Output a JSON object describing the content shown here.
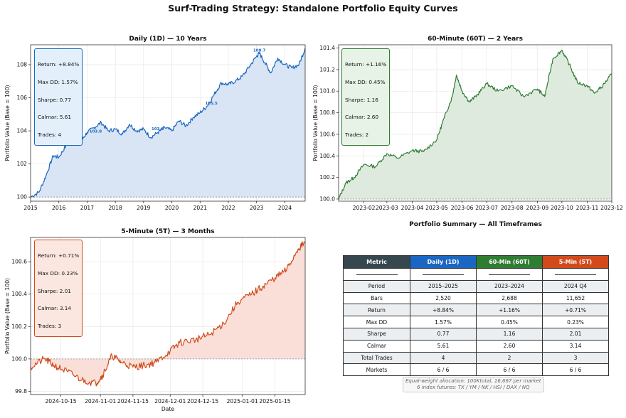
{
  "suptitle": "Surf-Trading Strategy: Standalone Portfolio Equity Curves",
  "chart_data": [
    {
      "type": "area",
      "title": "Daily (1D) — 10 Years",
      "xlabel": "",
      "ylabel": "Portfolio Value (Base = 100)",
      "color": "#1a66c2",
      "fill": "#d9e5f4",
      "xlim": [
        2015.0,
        2024.72
      ],
      "ylim": [
        99.75,
        109.2
      ],
      "yticks": [
        "100",
        "102",
        "104",
        "106",
        "108"
      ],
      "xticks": [
        "2015",
        "2016",
        "2017",
        "2018",
        "2019",
        "2020",
        "2021",
        "2022",
        "2023",
        "2024"
      ],
      "baseline": 100,
      "x": [
        2015.0,
        2015.3,
        2015.55,
        2015.8,
        2016.0,
        2016.25,
        2016.5,
        2016.8,
        2017.0,
        2017.25,
        2017.5,
        2017.75,
        2018.0,
        2018.25,
        2018.5,
        2018.75,
        2019.0,
        2019.25,
        2019.5,
        2019.75,
        2020.0,
        2020.25,
        2020.5,
        2020.75,
        2021.0,
        2021.25,
        2021.5,
        2021.75,
        2022.0,
        2022.25,
        2022.5,
        2022.75,
        2023.0,
        2023.1,
        2023.3,
        2023.5,
        2023.75,
        2024.0,
        2024.25,
        2024.5,
        2024.72
      ],
      "values": [
        100.0,
        100.3,
        101.3,
        102.5,
        102.4,
        103.1,
        103.6,
        103.4,
        103.9,
        104.2,
        104.5,
        104.0,
        104.1,
        103.8,
        104.4,
        104.0,
        104.1,
        103.6,
        103.9,
        104.2,
        104.0,
        104.6,
        104.3,
        104.8,
        105.1,
        105.5,
        106.2,
        106.9,
        106.8,
        107.0,
        107.3,
        107.9,
        108.5,
        108.7,
        108.1,
        107.5,
        108.4,
        108.0,
        107.8,
        108.0,
        109.0
      ],
      "annotations": [
        {
          "label": "103.8",
          "x": 2017.3,
          "y": 103.8
        },
        {
          "label": "103.9",
          "x": 2019.5,
          "y": 103.95
        },
        {
          "label": "105.5",
          "x": 2021.4,
          "y": 105.5
        },
        {
          "label": "108.7",
          "x": 2023.1,
          "y": 108.7
        }
      ],
      "stats": [
        "Return: +8.84%",
        "Max DD: 1.57%",
        "Sharpe: 0.77",
        "Calmar: 5.61",
        "Trades: 4"
      ]
    },
    {
      "type": "area",
      "title": "60-Minute (60T) — 2 Years",
      "xlabel": "",
      "ylabel": "Portfolio Value (Base = 100)",
      "color": "#2e7d32",
      "fill": "#dfeadf",
      "xlim": [
        "2023-01-01",
        "2023-12-01"
      ],
      "ylim": [
        99.98,
        101.43
      ],
      "yticks": [
        "100.0",
        "100.2",
        "100.4",
        "100.6",
        "100.8",
        "101.0",
        "101.2",
        "101.4"
      ],
      "xticks": [
        "2023-02",
        "2023-03",
        "2023-04",
        "2023-05",
        "2023-06",
        "2023-07",
        "2023-08",
        "2023-09",
        "2023-10",
        "2023-11",
        "2023-12"
      ],
      "baseline": 100,
      "x": [
        "2023-01-01",
        "2023-01-10",
        "2023-01-20",
        "2023-02-01",
        "2023-02-15",
        "2023-03-01",
        "2023-03-15",
        "2023-04-01",
        "2023-04-15",
        "2023-05-01",
        "2023-05-10",
        "2023-05-20",
        "2023-05-25",
        "2023-06-01",
        "2023-06-10",
        "2023-06-20",
        "2023-07-01",
        "2023-07-15",
        "2023-08-01",
        "2023-08-15",
        "2023-09-01",
        "2023-09-10",
        "2023-09-20",
        "2023-10-01",
        "2023-10-10",
        "2023-10-20",
        "2023-11-01",
        "2023-11-10",
        "2023-11-20",
        "2023-12-01"
      ],
      "values": [
        100.0,
        100.15,
        100.2,
        100.32,
        100.3,
        100.42,
        100.38,
        100.45,
        100.44,
        100.55,
        100.75,
        100.95,
        101.15,
        101.0,
        100.9,
        100.97,
        101.07,
        101.0,
        101.05,
        100.95,
        101.02,
        100.95,
        101.3,
        101.38,
        101.25,
        101.08,
        101.05,
        100.98,
        101.05,
        101.16
      ],
      "stats": [
        "Return: +1.16%",
        "Max DD: 0.45%",
        "Sharpe: 1.16",
        "Calmar: 2.60",
        "Trades: 2"
      ]
    },
    {
      "type": "area",
      "title": "5-Minute (5T) — 3 Months",
      "xlabel": "Date",
      "ylabel": "Portfolio Value (Base = 100)",
      "color": "#d24a1b",
      "fill": "#f9dfd8",
      "xlim": [
        "2024-10-02",
        "2025-01-28"
      ],
      "ylim": [
        99.78,
        100.75
      ],
      "yticks": [
        "99.8",
        "100.0",
        "100.2",
        "100.4",
        "100.6"
      ],
      "xticks": [
        "2024-10-15",
        "2024-11-01",
        "2024-11-15",
        "2024-12-01",
        "2024-12-15",
        "2025-01-01",
        "2025-01-15"
      ],
      "baseline": 100,
      "x": [
        "2024-10-02",
        "2024-10-08",
        "2024-10-12",
        "2024-10-18",
        "2024-10-24",
        "2024-10-30",
        "2024-11-02",
        "2024-11-06",
        "2024-11-10",
        "2024-11-15",
        "2024-11-20",
        "2024-11-25",
        "2024-12-01",
        "2024-12-05",
        "2024-12-12",
        "2024-12-18",
        "2024-12-24",
        "2024-12-30",
        "2025-01-05",
        "2025-01-10",
        "2025-01-15",
        "2025-01-20",
        "2025-01-25",
        "2025-01-28"
      ],
      "values": [
        99.95,
        100.0,
        99.96,
        99.92,
        99.87,
        99.85,
        99.9,
        100.02,
        99.98,
        99.95,
        99.96,
        99.98,
        100.05,
        100.1,
        100.12,
        100.15,
        100.22,
        100.35,
        100.4,
        100.45,
        100.5,
        100.55,
        100.68,
        100.72
      ],
      "stats": [
        "Return: +0.71%",
        "Max DD: 0.23%",
        "Sharpe: 2.01",
        "Calmar: 3.14",
        "Trades: 3"
      ]
    },
    {
      "type": "table",
      "title": "Portfolio Summary — All Timeframes",
      "header": [
        "Metric",
        "Daily (1D)",
        "60-Min (60T)",
        "5-Min (5T)"
      ],
      "header_colors": [
        "#37474f",
        "#1a66c2",
        "#2e7d32",
        "#d24a1b"
      ],
      "rows": [
        [
          "Period",
          "2015–2025",
          "2023–2024",
          "2024 Q4"
        ],
        [
          "Bars",
          "2,520",
          "2,688",
          "11,652"
        ],
        [
          "Return",
          "+8.84%",
          "+1.16%",
          "+0.71%"
        ],
        [
          "Max DD",
          "1.57%",
          "0.45%",
          "0.23%"
        ],
        [
          "Sharpe",
          "0.77",
          "1.16",
          "2.01"
        ],
        [
          "Calmar",
          "5.61",
          "2.60",
          "3.14"
        ],
        [
          "Total Trades",
          "4",
          "2",
          "3"
        ],
        [
          "Markets",
          "6 / 6",
          "6 / 6",
          "6 / 6"
        ]
      ],
      "note": [
        "Equal-weight allocation: 100Ktotal, 16,667 per market",
        "6 index futures: TX / YM / NK / HSI / DAX / NQ"
      ]
    }
  ]
}
